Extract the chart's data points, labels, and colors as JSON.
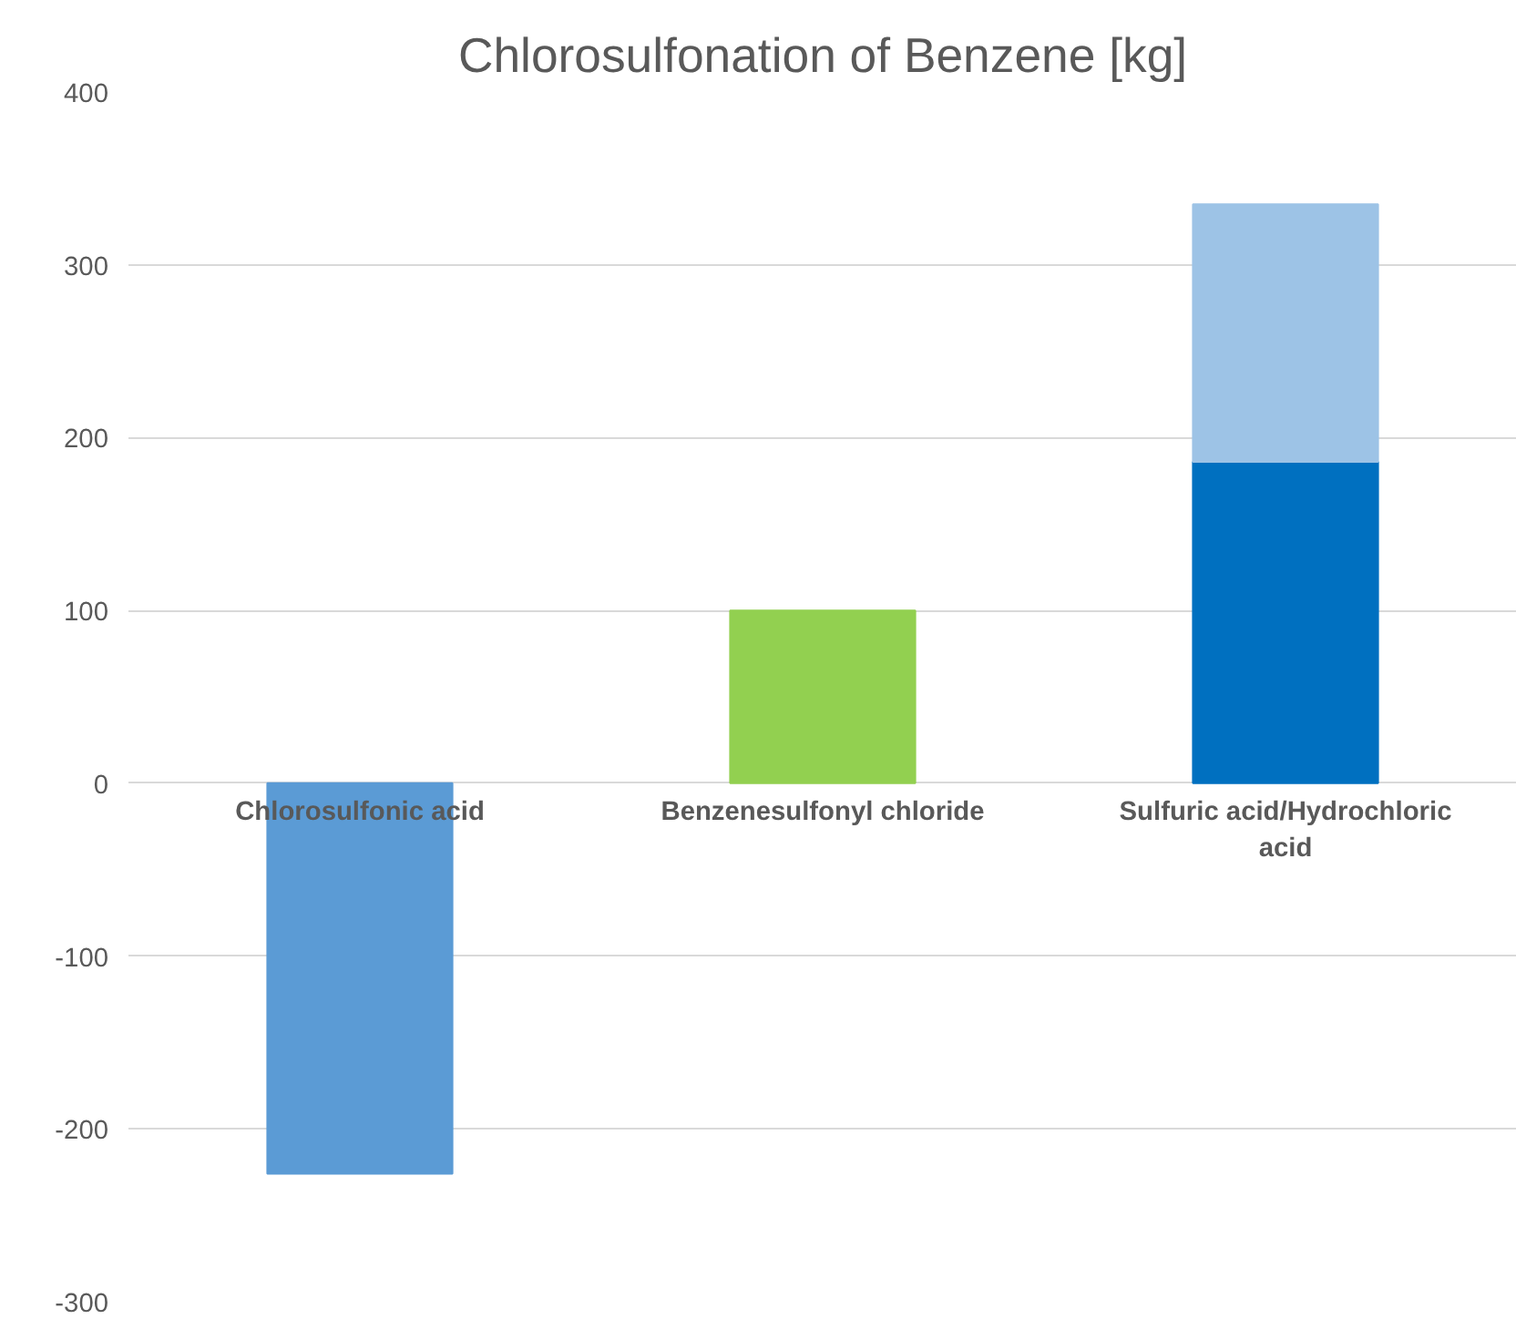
{
  "chart_data": {
    "type": "bar",
    "title": "Chlorosulfonation of Benzene [kg]",
    "stacked": true,
    "categories": [
      "Chlorosulfonic acid",
      "Benzenesulfonyl chloride",
      "Sulfuric acid/Hydrochloric acid"
    ],
    "series": [
      {
        "colors": [
          "#5b9bd5",
          "#92d050",
          "#0070c0"
        ],
        "values": [
          -226,
          100,
          186
        ]
      },
      {
        "color": "#9dc3e6",
        "values": [
          null,
          null,
          149
        ]
      }
    ],
    "ylim": [
      -300,
      400
    ],
    "yticks": [
      -300,
      -200,
      -100,
      0,
      100,
      200,
      300,
      400
    ],
    "grid": "y"
  }
}
